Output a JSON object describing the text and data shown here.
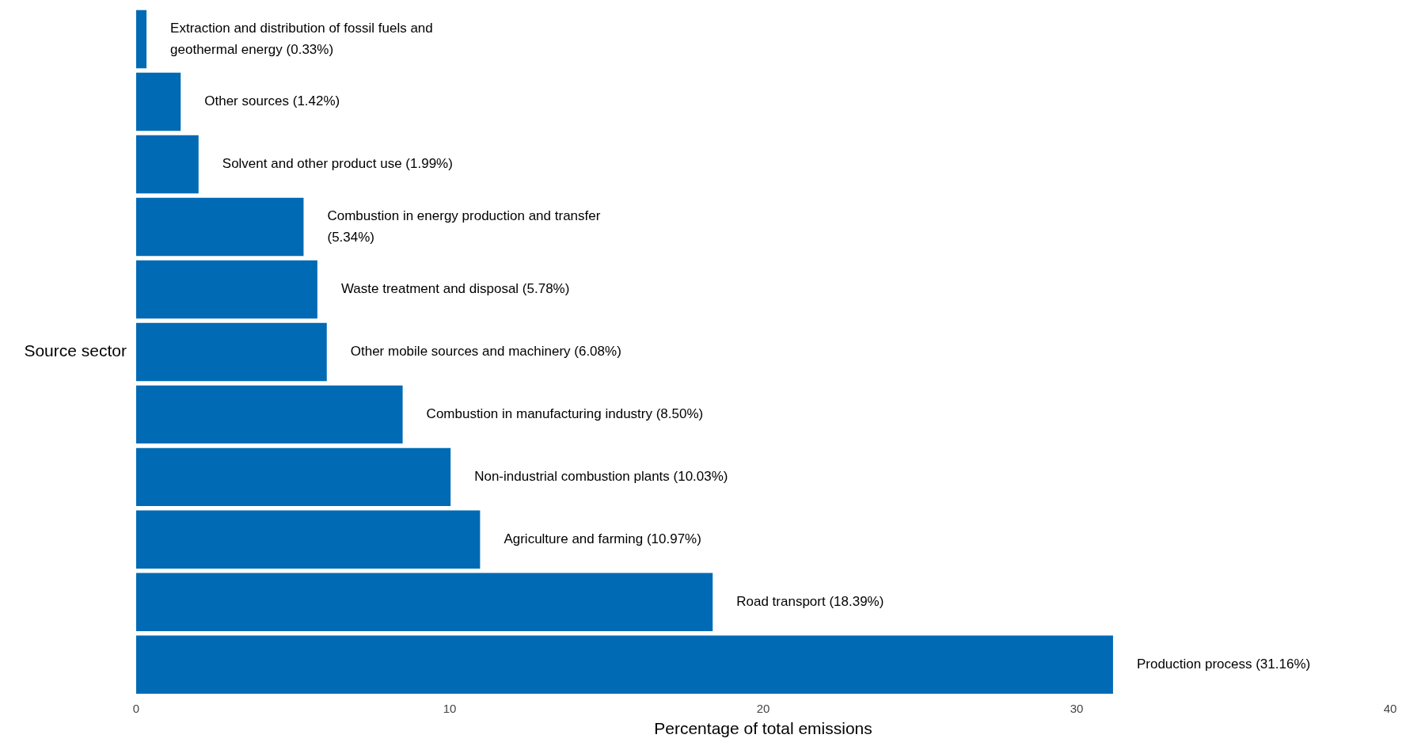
{
  "chart_data": {
    "type": "bar",
    "orientation": "horizontal",
    "xlabel": "Percentage of total emissions",
    "ylabel": "Source sector",
    "categories": [
      null,
      null,
      null,
      null,
      null,
      null,
      null,
      null,
      null,
      null,
      null
    ],
    "values": [
      0.33,
      1.42,
      1.99,
      5.34,
      5.78,
      6.08,
      8.5,
      10.03,
      10.97,
      18.39,
      31.16
    ],
    "value_labels": [
      "Extraction and distribution of fossil fuels and geothermal energy (0.33%)",
      "Other sources (1.42%)",
      "Solvent and other product use (1.99%)",
      "Combustion in energy production and transfer (5.34%)",
      "Waste treatment and disposal (5.78%)",
      "Other mobile sources and machinery (6.08%)",
      "Combustion in manufacturing industry (8.50%)",
      "Non-industrial combustion plants (10.03%)",
      "Agriculture and farming (10.97%)",
      "Road transport (18.39%)",
      "Production process (31.16%)"
    ],
    "color": "#006ab5",
    "xlim": [
      0,
      40
    ],
    "xticks": [
      0,
      10,
      20,
      30,
      40
    ],
    "grid": false,
    "legend": false,
    "tick_labels": "x"
  }
}
